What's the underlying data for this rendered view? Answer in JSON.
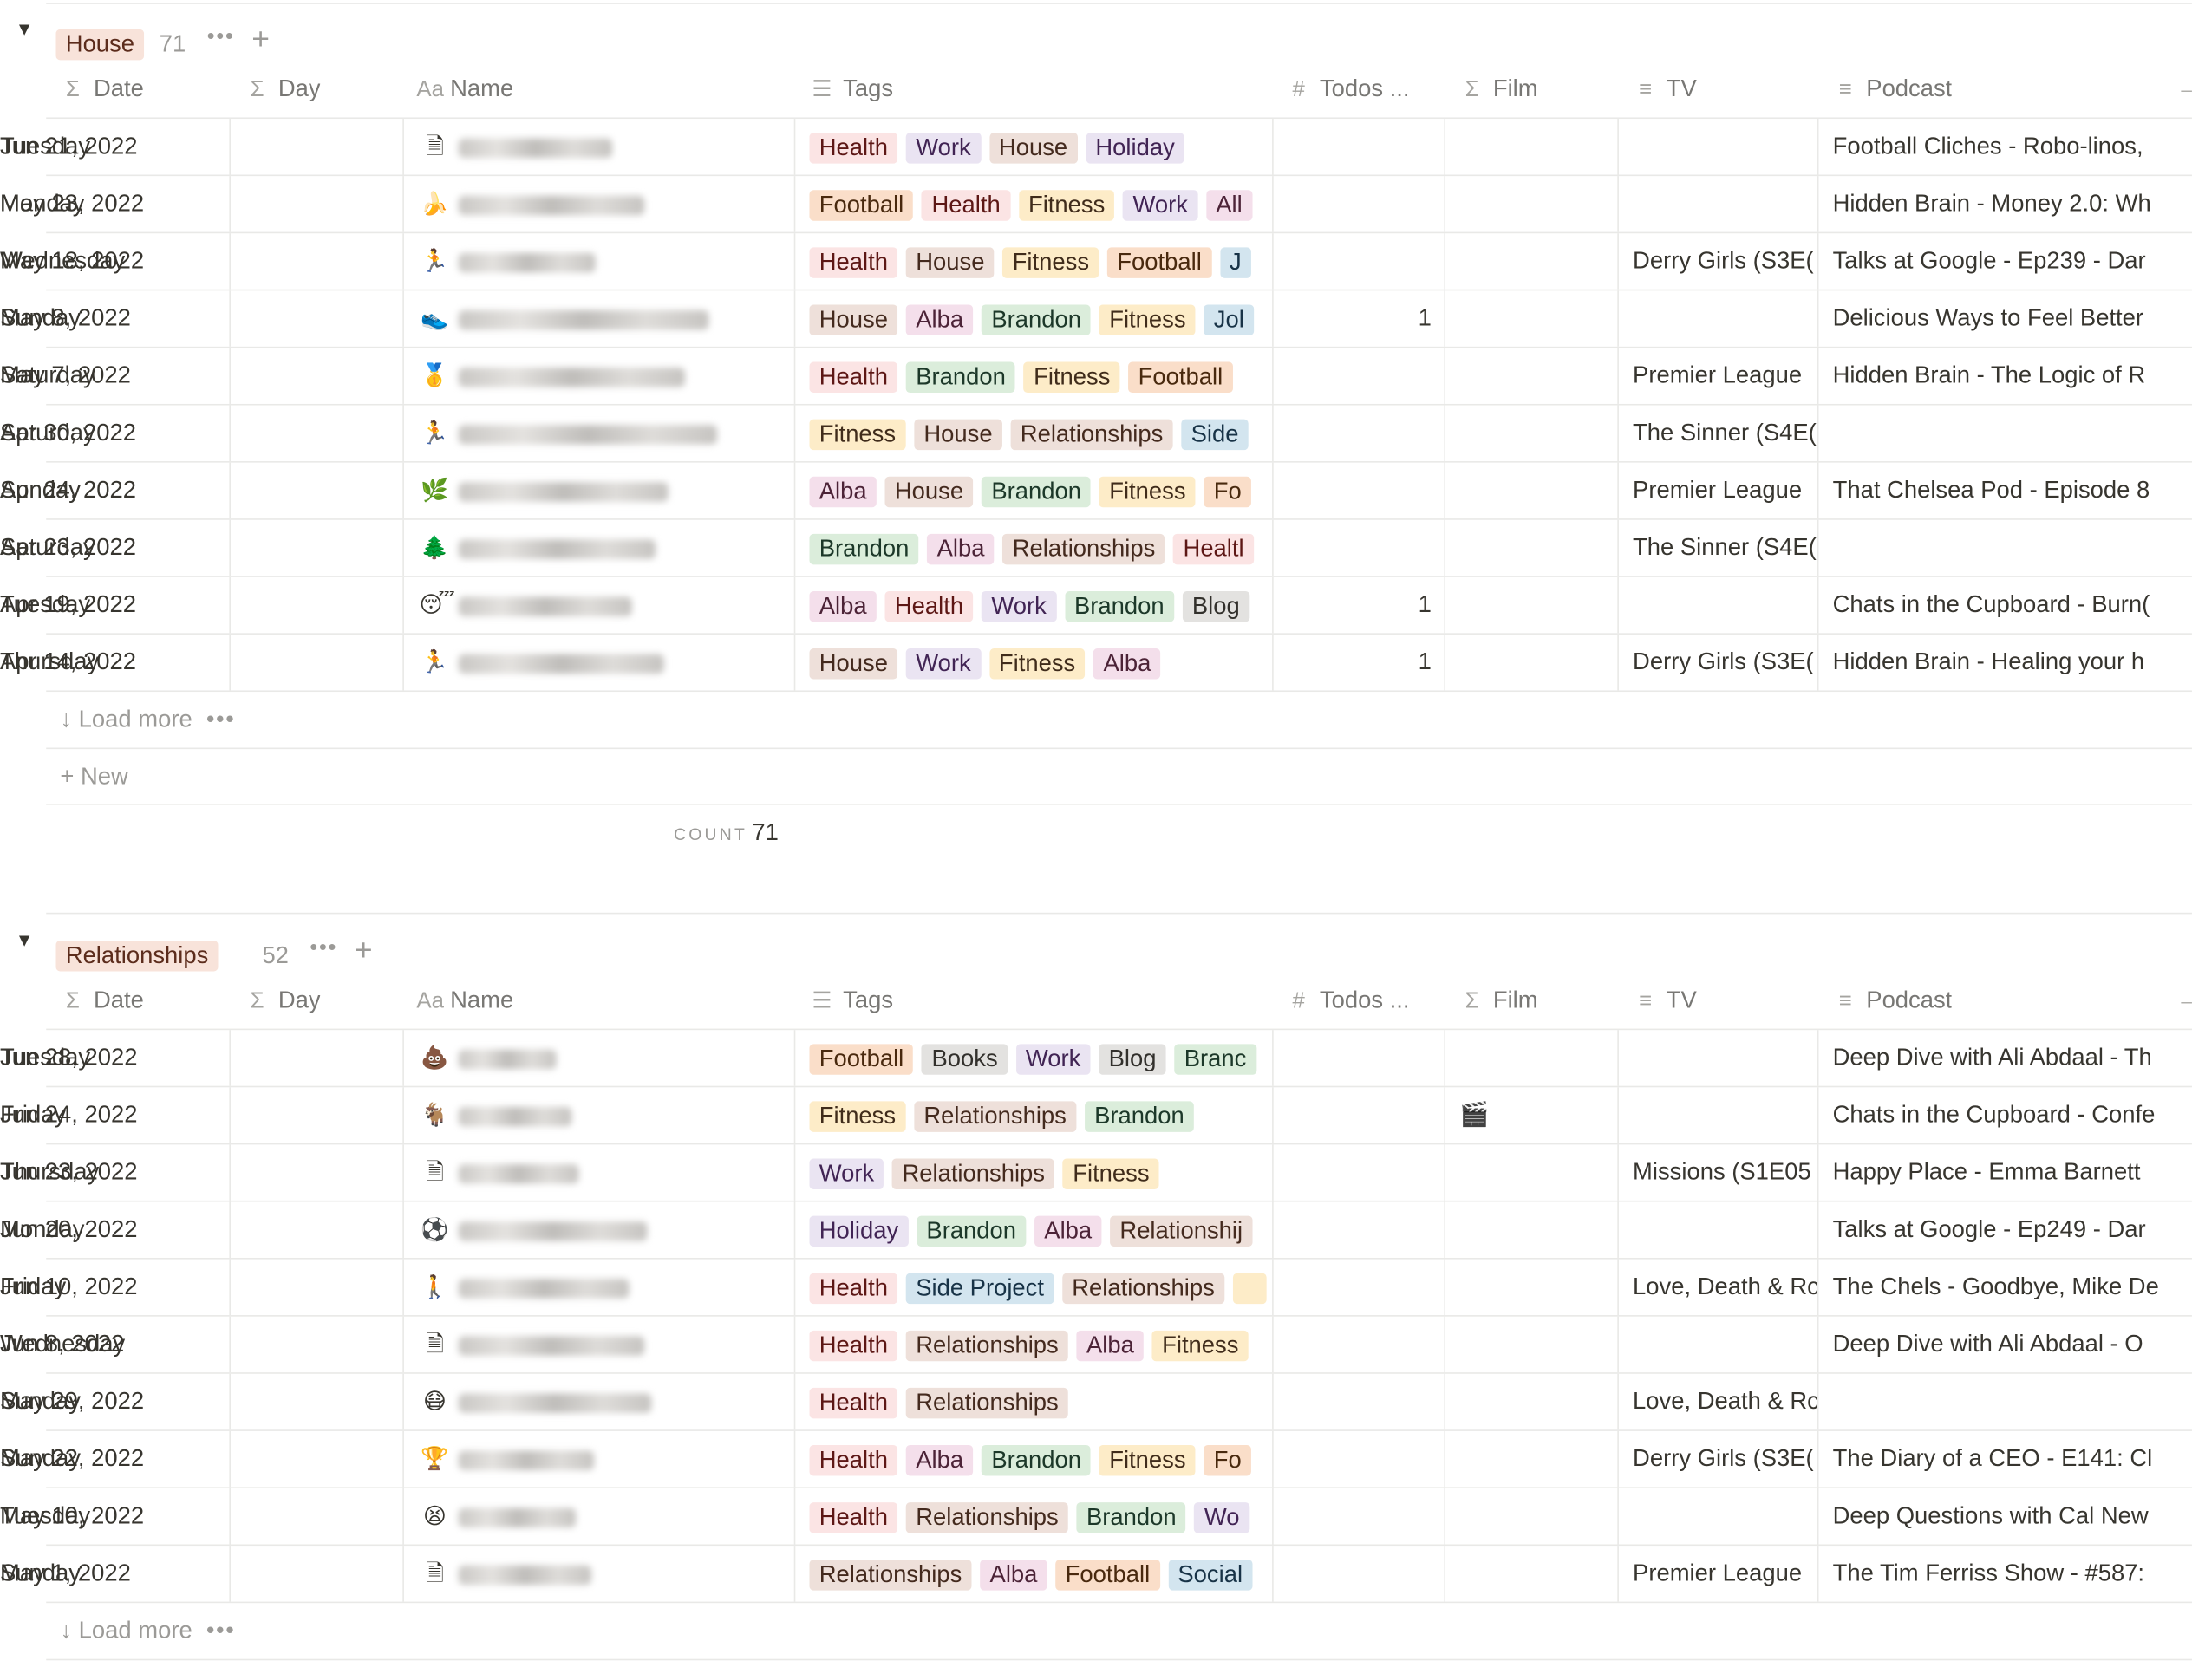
{
  "columns": [
    {
      "key": "date",
      "label": "Date",
      "icon": "Σ",
      "icon_name": "formula-icon"
    },
    {
      "key": "day",
      "label": "Day",
      "icon": "Σ",
      "icon_name": "formula-icon"
    },
    {
      "key": "name",
      "label": "Name",
      "icon": "Aa",
      "icon_name": "title-icon"
    },
    {
      "key": "tags",
      "label": "Tags",
      "icon": "☰",
      "icon_name": "multi-select-icon"
    },
    {
      "key": "todos",
      "label": "Todos ...",
      "icon": "#",
      "icon_name": "number-icon"
    },
    {
      "key": "film",
      "label": "Film",
      "icon": "Σ",
      "icon_name": "formula-icon"
    },
    {
      "key": "tv",
      "label": "TV",
      "icon": "≡",
      "icon_name": "text-icon"
    },
    {
      "key": "podcast",
      "label": "Podcast",
      "icon": "≡",
      "icon_name": "text-icon"
    }
  ],
  "tag_colors": {
    "Health": {
      "bg": "#fbe4e4",
      "fg": "#5d1715"
    },
    "Work": {
      "bg": "#eae4f2",
      "fg": "#412454"
    },
    "House": {
      "bg": "#eee0da",
      "fg": "#442a1e"
    },
    "Holiday": {
      "bg": "#eae4f2",
      "fg": "#412454"
    },
    "Football": {
      "bg": "#fadec9",
      "fg": "#49290e"
    },
    "Fitness": {
      "bg": "#fdecc8",
      "fg": "#402c1b"
    },
    "Alba": {
      "bg": "#f4dfeb",
      "fg": "#4c2337"
    },
    "Brandon": {
      "bg": "#dbeddb",
      "fg": "#1c3829"
    },
    "Relationships": {
      "bg": "#eee0da",
      "fg": "#442a1e"
    },
    "Side": {
      "bg": "#d3e5ef",
      "fg": "#183347"
    },
    "Side Project": {
      "bg": "#d3e5ef",
      "fg": "#183347"
    },
    "Blog": {
      "bg": "#e3e2e0",
      "fg": "#32302c"
    },
    "Books": {
      "bg": "#e3e2e0",
      "fg": "#32302c"
    },
    "Social": {
      "bg": "#d3e5ef",
      "fg": "#183347"
    },
    "J": {
      "bg": "#d3e5ef",
      "fg": "#183347"
    },
    "Jol": {
      "bg": "#d3e5ef",
      "fg": "#183347"
    },
    "All": {
      "bg": "#f4dfeb",
      "fg": "#4c2337"
    },
    "Fo": {
      "bg": "#fadec9",
      "fg": "#49290e"
    },
    "Healtl": {
      "bg": "#fbe4e4",
      "fg": "#5d1715"
    },
    "Branc": {
      "bg": "#dbeddb",
      "fg": "#1c3829"
    },
    "Relationshij": {
      "bg": "#eee0da",
      "fg": "#442a1e"
    },
    "Wo": {
      "bg": "#eae4f2",
      "fg": "#412454"
    },
    "": {
      "bg": "#fdecc8",
      "fg": "#402c1b"
    }
  },
  "groups": [
    {
      "tag": "House",
      "count": "71",
      "more": "•••",
      "add": "+",
      "count_label": "COUNT",
      "count_value": "71",
      "load_more": "Load more",
      "new_label": "New",
      "rows": [
        {
          "date": "Jun 21, 2022",
          "day": "Tuesday",
          "icon": "🗎",
          "icon_name": "page-icon",
          "tags": [
            "Health",
            "Work",
            "House",
            "Holiday"
          ],
          "todos": "",
          "film": "",
          "tv": "",
          "podcast": "Football Cliches - Robo-linos,"
        },
        {
          "date": "May 23, 2022",
          "day": "Monday",
          "icon": "🍌",
          "icon_name": "banana-icon",
          "tags": [
            "Football",
            "Health",
            "Fitness",
            "Work",
            "All"
          ],
          "todos": "",
          "film": "",
          "tv": "",
          "podcast": "Hidden Brain - Money 2.0: Wh"
        },
        {
          "date": "May 18, 2022",
          "day": "Wednesday",
          "icon": "🏃",
          "icon_name": "runner-icon",
          "tags": [
            "Health",
            "House",
            "Fitness",
            "Football",
            "J"
          ],
          "todos": "",
          "film": "",
          "tv": "Derry Girls (S3E(",
          "podcast": "Talks at Google - Ep239 - Dar"
        },
        {
          "date": "May 8, 2022",
          "day": "Sunday",
          "icon": "👟",
          "icon_name": "shoe-icon",
          "tags": [
            "House",
            "Alba",
            "Brandon",
            "Fitness",
            "Jol"
          ],
          "todos": "1",
          "film": "",
          "tv": "",
          "podcast": "Delicious Ways to Feel Better"
        },
        {
          "date": "May 7, 2022",
          "day": "Saturday",
          "icon": "🥇",
          "icon_name": "medal-icon",
          "tags": [
            "Health",
            "Brandon",
            "Fitness",
            "Football"
          ],
          "todos": "",
          "film": "",
          "tv": "Premier League",
          "podcast": "Hidden Brain - The Logic of R"
        },
        {
          "date": "Apr 30, 2022",
          "day": "Saturday",
          "icon": "🏃",
          "icon_name": "runner-icon",
          "tags": [
            "Fitness",
            "House",
            "Relationships",
            "Side"
          ],
          "todos": "",
          "film": "",
          "tv": "The Sinner (S4E(",
          "podcast": ""
        },
        {
          "date": "Apr 24, 2022",
          "day": "Sunday",
          "icon": "🌿",
          "icon_name": "leaf-icon",
          "tags": [
            "Alba",
            "House",
            "Brandon",
            "Fitness",
            "Fo"
          ],
          "todos": "",
          "film": "",
          "tv": "Premier League",
          "podcast": "That Chelsea Pod - Episode 8"
        },
        {
          "date": "Apr 23, 2022",
          "day": "Saturday",
          "icon": "🌲",
          "icon_name": "tree-icon",
          "tags": [
            "Brandon",
            "Alba",
            "Relationships",
            "Healtl"
          ],
          "todos": "",
          "film": "",
          "tv": "The Sinner (S4E(",
          "podcast": ""
        },
        {
          "date": "Apr 19, 2022",
          "day": "Tuesday",
          "icon": "😴",
          "icon_name": "sleeping-face-icon",
          "tags": [
            "Alba",
            "Health",
            "Work",
            "Brandon",
            "Blog"
          ],
          "todos": "1",
          "film": "",
          "tv": "",
          "podcast": "Chats in the Cupboard - Burn("
        },
        {
          "date": "Apr 14, 2022",
          "day": "Thursday",
          "icon": "🏃",
          "icon_name": "runner-icon",
          "tags": [
            "House",
            "Work",
            "Fitness",
            "Alba"
          ],
          "todos": "1",
          "film": "",
          "tv": "Derry Girls (S3E(",
          "podcast": "Hidden Brain - Healing your h"
        }
      ]
    },
    {
      "tag": "Relationships",
      "count": "52",
      "more": "•••",
      "add": "+",
      "load_more": "Load more",
      "rows": [
        {
          "date": "Jun 28, 2022",
          "day": "Tuesday",
          "icon": "💩",
          "icon_name": "poop-icon",
          "tags": [
            "Football",
            "Books",
            "Work",
            "Blog",
            "Branc"
          ],
          "todos": "",
          "film": "",
          "tv": "",
          "podcast": "Deep Dive with Ali Abdaal - Th"
        },
        {
          "date": "Jun 24, 2022",
          "day": "Friday",
          "icon": "🐐",
          "icon_name": "goat-icon",
          "tags": [
            "Fitness",
            "Relationships",
            "Brandon"
          ],
          "todos": "",
          "film": "🎬",
          "film_name": "clapper-icon",
          "tv": "",
          "podcast": "Chats in the Cupboard - Confe"
        },
        {
          "date": "Jun 23, 2022",
          "day": "Thursday",
          "icon": "🗎",
          "icon_name": "page-icon",
          "tags": [
            "Work",
            "Relationships",
            "Fitness"
          ],
          "todos": "",
          "film": "",
          "tv": "Missions (S1E05",
          "podcast": "Happy Place - Emma Barnett"
        },
        {
          "date": "Jun 20, 2022",
          "day": "Monday",
          "icon": "⚽",
          "icon_name": "soccer-ball-icon",
          "tags": [
            "Holiday",
            "Brandon",
            "Alba",
            "Relationshij"
          ],
          "todos": "",
          "film": "",
          "tv": "",
          "podcast": "Talks at Google - Ep249 - Dar"
        },
        {
          "date": "Jun 10, 2022",
          "day": "Friday",
          "icon": "🚶",
          "icon_name": "walking-person-icon",
          "tags": [
            "Health",
            "Side Project",
            "Relationships",
            ""
          ],
          "todos": "",
          "film": "",
          "tv": "Love, Death & Rc",
          "podcast": "The Chels - Goodbye, Mike De"
        },
        {
          "date": "Jun 8, 2022",
          "day": "Wednesday",
          "icon": "🗎",
          "icon_name": "page-icon",
          "tags": [
            "Health",
            "Relationships",
            "Alba",
            "Fitness"
          ],
          "todos": "",
          "film": "",
          "tv": "",
          "podcast": "Deep Dive with Ali Abdaal - O"
        },
        {
          "date": "May 29, 2022",
          "day": "Sunday",
          "icon": "😷",
          "icon_name": "face-icon",
          "tags": [
            "Health",
            "Relationships"
          ],
          "todos": "",
          "film": "",
          "tv": "Love, Death & Rc",
          "podcast": ""
        },
        {
          "date": "May 22, 2022",
          "day": "Sunday",
          "icon": "🏆",
          "icon_name": "trophy-icon",
          "tags": [
            "Health",
            "Alba",
            "Brandon",
            "Fitness",
            "Fo"
          ],
          "todos": "",
          "film": "",
          "tv": "Derry Girls (S3E(",
          "podcast": "The Diary of a CEO - E141: Cl"
        },
        {
          "date": "May 10, 2022",
          "day": "Tuesday",
          "icon": "😫",
          "icon_name": "tired-face-icon",
          "tags": [
            "Health",
            "Relationships",
            "Brandon",
            "Wo"
          ],
          "todos": "",
          "film": "",
          "tv": "",
          "podcast": "Deep Questions with Cal New"
        },
        {
          "date": "May 1, 2022",
          "day": "Sunday",
          "icon": "🗎",
          "icon_name": "page-icon",
          "tags": [
            "Relationships",
            "Alba",
            "Football",
            "Social"
          ],
          "todos": "",
          "film": "",
          "tv": "Premier League",
          "podcast": "The Tim Ferriss Show - #587:"
        }
      ]
    }
  ]
}
